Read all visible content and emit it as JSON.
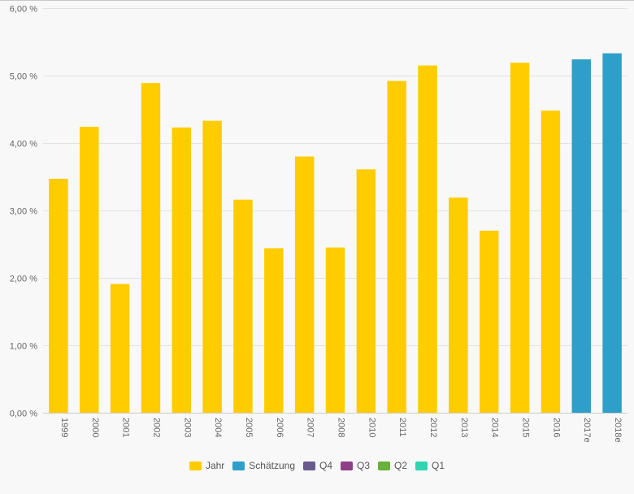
{
  "chart_data": {
    "type": "bar",
    "categories": [
      "1999",
      "2000",
      "2001",
      "2002",
      "2003",
      "2004",
      "2005",
      "2006",
      "2007",
      "2008",
      "2010",
      "2011",
      "2012",
      "2013",
      "2014",
      "2015",
      "2016",
      "2017e",
      "2018e"
    ],
    "series": [
      {
        "name": "Jahr",
        "color": "#ffcc00",
        "values": [
          3.47,
          4.24,
          1.91,
          4.89,
          4.23,
          4.33,
          3.16,
          2.44,
          3.8,
          2.45,
          3.61,
          4.92,
          5.15,
          3.19,
          2.7,
          5.19,
          4.48,
          null,
          null
        ]
      },
      {
        "name": "Schätzung",
        "color": "#2e9fc8",
        "values": [
          null,
          null,
          null,
          null,
          null,
          null,
          null,
          null,
          null,
          null,
          null,
          null,
          null,
          null,
          null,
          null,
          null,
          5.24,
          5.33
        ]
      }
    ],
    "ylim": [
      0,
      6
    ],
    "yticks": [
      0,
      1,
      2,
      3,
      4,
      5,
      6
    ],
    "ytick_labels": [
      "0,00 %",
      "1,00 %",
      "2,00 %",
      "3,00 %",
      "4,00 %",
      "5,00 %",
      "6,00 %"
    ],
    "grid": true,
    "legend_position": "bottom-center"
  },
  "legend": {
    "items": [
      {
        "label": "Jahr",
        "color": "#ffcc00",
        "icon": "legend-swatch"
      },
      {
        "label": "Schätzung",
        "color": "#2e9fc8",
        "icon": "legend-swatch"
      },
      {
        "label": "Q4",
        "color": "#6a5b8e",
        "icon": "legend-swatch"
      },
      {
        "label": "Q3",
        "color": "#8f3f88",
        "icon": "legend-swatch"
      },
      {
        "label": "Q2",
        "color": "#6ab03c",
        "icon": "legend-swatch"
      },
      {
        "label": "Q1",
        "color": "#2fd4b0",
        "icon": "legend-swatch"
      }
    ]
  }
}
